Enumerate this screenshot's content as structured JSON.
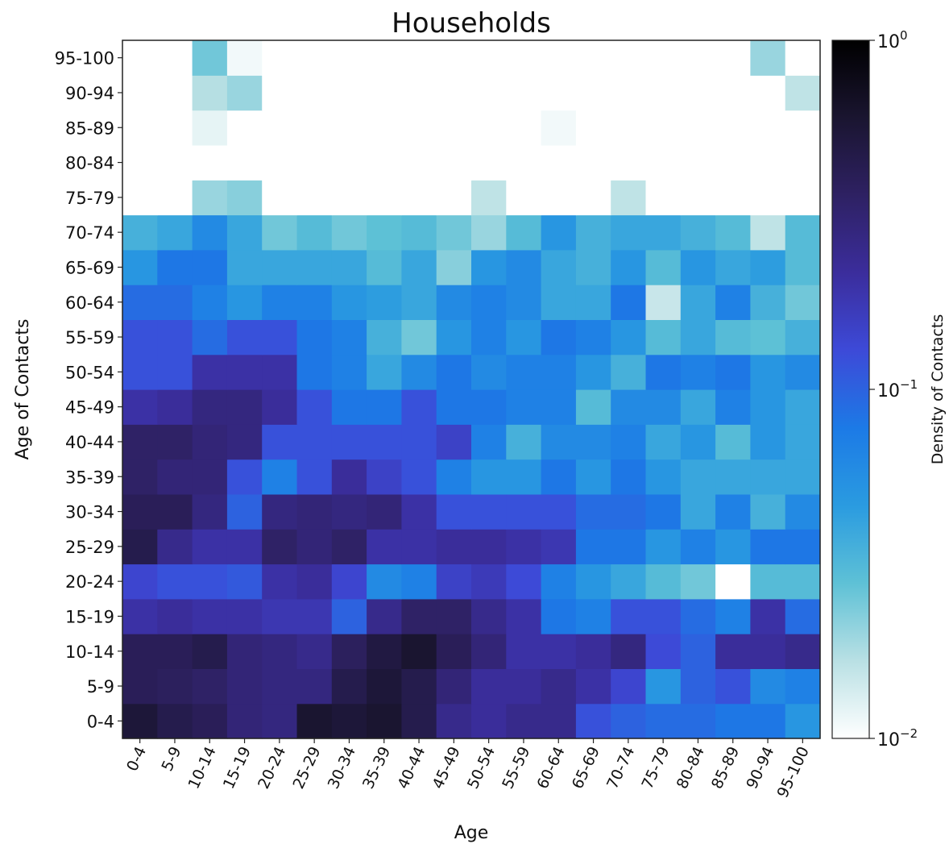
{
  "chart_data": {
    "type": "heatmap",
    "title": "Households",
    "xlabel": "Age",
    "ylabel": "Age of Contacts",
    "colorbar_label": "Density of Contacts",
    "color_scale": "log",
    "color_range": [
      0.01,
      1
    ],
    "colorbar_ticks": [
      {
        "value": 1,
        "base": "10",
        "exp": "0"
      },
      {
        "value": 0.1,
        "base": "10",
        "exp": "−1"
      },
      {
        "value": 0.01,
        "base": "10",
        "exp": "−2"
      }
    ],
    "colormap_stops": [
      "#ffffff",
      "#b9e0e4",
      "#5ec1d6",
      "#2a9be0",
      "#1c7ae6",
      "#3d4ad8",
      "#3b2d9c",
      "#2e2163",
      "#1a1530",
      "#000000"
    ],
    "x_categories": [
      "0-4",
      "5-9",
      "10-14",
      "15-19",
      "20-24",
      "25-29",
      "30-34",
      "35-39",
      "40-44",
      "45-49",
      "50-54",
      "55-59",
      "60-64",
      "65-69",
      "70-74",
      "75-79",
      "80-84",
      "85-89",
      "90-94",
      "95-100"
    ],
    "y_categories": [
      "0-4",
      "5-9",
      "10-14",
      "15-19",
      "20-24",
      "25-29",
      "30-34",
      "35-39",
      "40-44",
      "45-49",
      "50-54",
      "55-59",
      "60-64",
      "65-69",
      "70-74",
      "75-79",
      "80-84",
      "85-89",
      "90-94",
      "95-100"
    ],
    "values_note_rows_bottom_to_top": true,
    "values": [
      [
        0.55,
        0.45,
        0.4,
        0.3,
        0.28,
        0.6,
        0.55,
        0.6,
        0.45,
        0.25,
        0.22,
        0.25,
        0.25,
        0.12,
        0.1,
        0.09,
        0.09,
        0.08,
        0.08,
        0.05
      ],
      [
        0.4,
        0.38,
        0.35,
        0.3,
        0.28,
        0.28,
        0.45,
        0.55,
        0.45,
        0.3,
        0.22,
        0.22,
        0.25,
        0.2,
        0.14,
        0.05,
        0.1,
        0.12,
        0.06,
        0.07
      ],
      [
        0.4,
        0.4,
        0.45,
        0.3,
        0.28,
        0.25,
        0.38,
        0.5,
        0.6,
        0.4,
        0.3,
        0.2,
        0.2,
        0.22,
        0.28,
        0.13,
        0.1,
        0.22,
        0.22,
        0.25
      ],
      [
        0.2,
        0.22,
        0.2,
        0.2,
        0.18,
        0.18,
        0.1,
        0.25,
        0.35,
        0.35,
        0.25,
        0.2,
        0.08,
        0.07,
        0.12,
        0.12,
        0.09,
        0.07,
        0.2,
        0.09
      ],
      [
        0.14,
        0.12,
        0.12,
        0.11,
        0.2,
        0.22,
        0.14,
        0.06,
        0.07,
        0.15,
        0.17,
        0.13,
        0.07,
        0.05,
        0.04,
        0.03,
        0.025,
        0.01,
        0.03,
        0.03
      ],
      [
        0.45,
        0.25,
        0.2,
        0.2,
        0.35,
        0.3,
        0.35,
        0.2,
        0.2,
        0.22,
        0.22,
        0.2,
        0.18,
        0.08,
        0.08,
        0.05,
        0.07,
        0.05,
        0.08,
        0.08
      ],
      [
        0.4,
        0.4,
        0.28,
        0.1,
        0.28,
        0.3,
        0.28,
        0.3,
        0.2,
        0.12,
        0.12,
        0.12,
        0.12,
        0.09,
        0.09,
        0.08,
        0.04,
        0.07,
        0.035,
        0.06
      ],
      [
        0.35,
        0.3,
        0.3,
        0.12,
        0.07,
        0.12,
        0.22,
        0.15,
        0.12,
        0.07,
        0.05,
        0.05,
        0.08,
        0.05,
        0.08,
        0.05,
        0.04,
        0.04,
        0.04,
        0.04
      ],
      [
        0.35,
        0.35,
        0.3,
        0.28,
        0.12,
        0.12,
        0.12,
        0.12,
        0.12,
        0.15,
        0.07,
        0.035,
        0.06,
        0.06,
        0.07,
        0.04,
        0.05,
        0.03,
        0.05,
        0.04
      ],
      [
        0.2,
        0.22,
        0.28,
        0.28,
        0.22,
        0.12,
        0.08,
        0.08,
        0.12,
        0.08,
        0.08,
        0.07,
        0.07,
        0.03,
        0.06,
        0.06,
        0.04,
        0.07,
        0.05,
        0.04
      ],
      [
        0.12,
        0.12,
        0.2,
        0.2,
        0.2,
        0.08,
        0.07,
        0.04,
        0.06,
        0.08,
        0.06,
        0.07,
        0.07,
        0.05,
        0.035,
        0.08,
        0.07,
        0.08,
        0.05,
        0.06
      ],
      [
        0.12,
        0.12,
        0.09,
        0.12,
        0.12,
        0.08,
        0.07,
        0.035,
        0.025,
        0.05,
        0.07,
        0.05,
        0.08,
        0.07,
        0.05,
        0.03,
        0.04,
        0.03,
        0.028,
        0.035
      ],
      [
        0.09,
        0.09,
        0.07,
        0.05,
        0.07,
        0.07,
        0.05,
        0.045,
        0.04,
        0.06,
        0.07,
        0.06,
        0.04,
        0.04,
        0.08,
        0.015,
        0.04,
        0.07,
        0.035,
        0.025
      ],
      [
        0.05,
        0.08,
        0.08,
        0.04,
        0.04,
        0.04,
        0.04,
        0.03,
        0.04,
        0.022,
        0.05,
        0.06,
        0.04,
        0.035,
        0.05,
        0.03,
        0.05,
        0.04,
        0.045,
        0.03
      ],
      [
        0.035,
        0.04,
        0.06,
        0.04,
        0.025,
        0.03,
        0.025,
        0.028,
        0.03,
        0.025,
        0.02,
        0.03,
        0.05,
        0.035,
        0.04,
        0.04,
        0.035,
        0.03,
        0.016,
        0.03
      ],
      [
        0.01,
        0.01,
        0.02,
        0.022,
        0.01,
        0.01,
        0.01,
        0.01,
        0.01,
        0.01,
        0.016,
        0.01,
        0.01,
        0.01,
        0.016,
        0.01,
        0.01,
        0.01,
        0.01,
        0.01
      ],
      [
        0.01,
        0.01,
        0.01,
        0.01,
        0.01,
        0.01,
        0.01,
        0.01,
        0.01,
        0.01,
        0.01,
        0.01,
        0.01,
        0.01,
        0.01,
        0.01,
        0.01,
        0.01,
        0.01,
        0.01
      ],
      [
        0.01,
        0.01,
        0.012,
        0.01,
        0.01,
        0.01,
        0.01,
        0.01,
        0.01,
        0.01,
        0.01,
        0.01,
        0.011,
        0.01,
        0.01,
        0.01,
        0.01,
        0.01,
        0.01,
        0.01
      ],
      [
        0.01,
        0.01,
        0.017,
        0.02,
        0.01,
        0.01,
        0.01,
        0.01,
        0.01,
        0.01,
        0.01,
        0.01,
        0.01,
        0.01,
        0.01,
        0.01,
        0.01,
        0.01,
        0.01,
        0.016
      ],
      [
        0.01,
        0.01,
        0.025,
        0.011,
        0.01,
        0.01,
        0.01,
        0.01,
        0.01,
        0.01,
        0.01,
        0.01,
        0.01,
        0.01,
        0.01,
        0.01,
        0.01,
        0.01,
        0.02,
        0.01
      ]
    ]
  }
}
